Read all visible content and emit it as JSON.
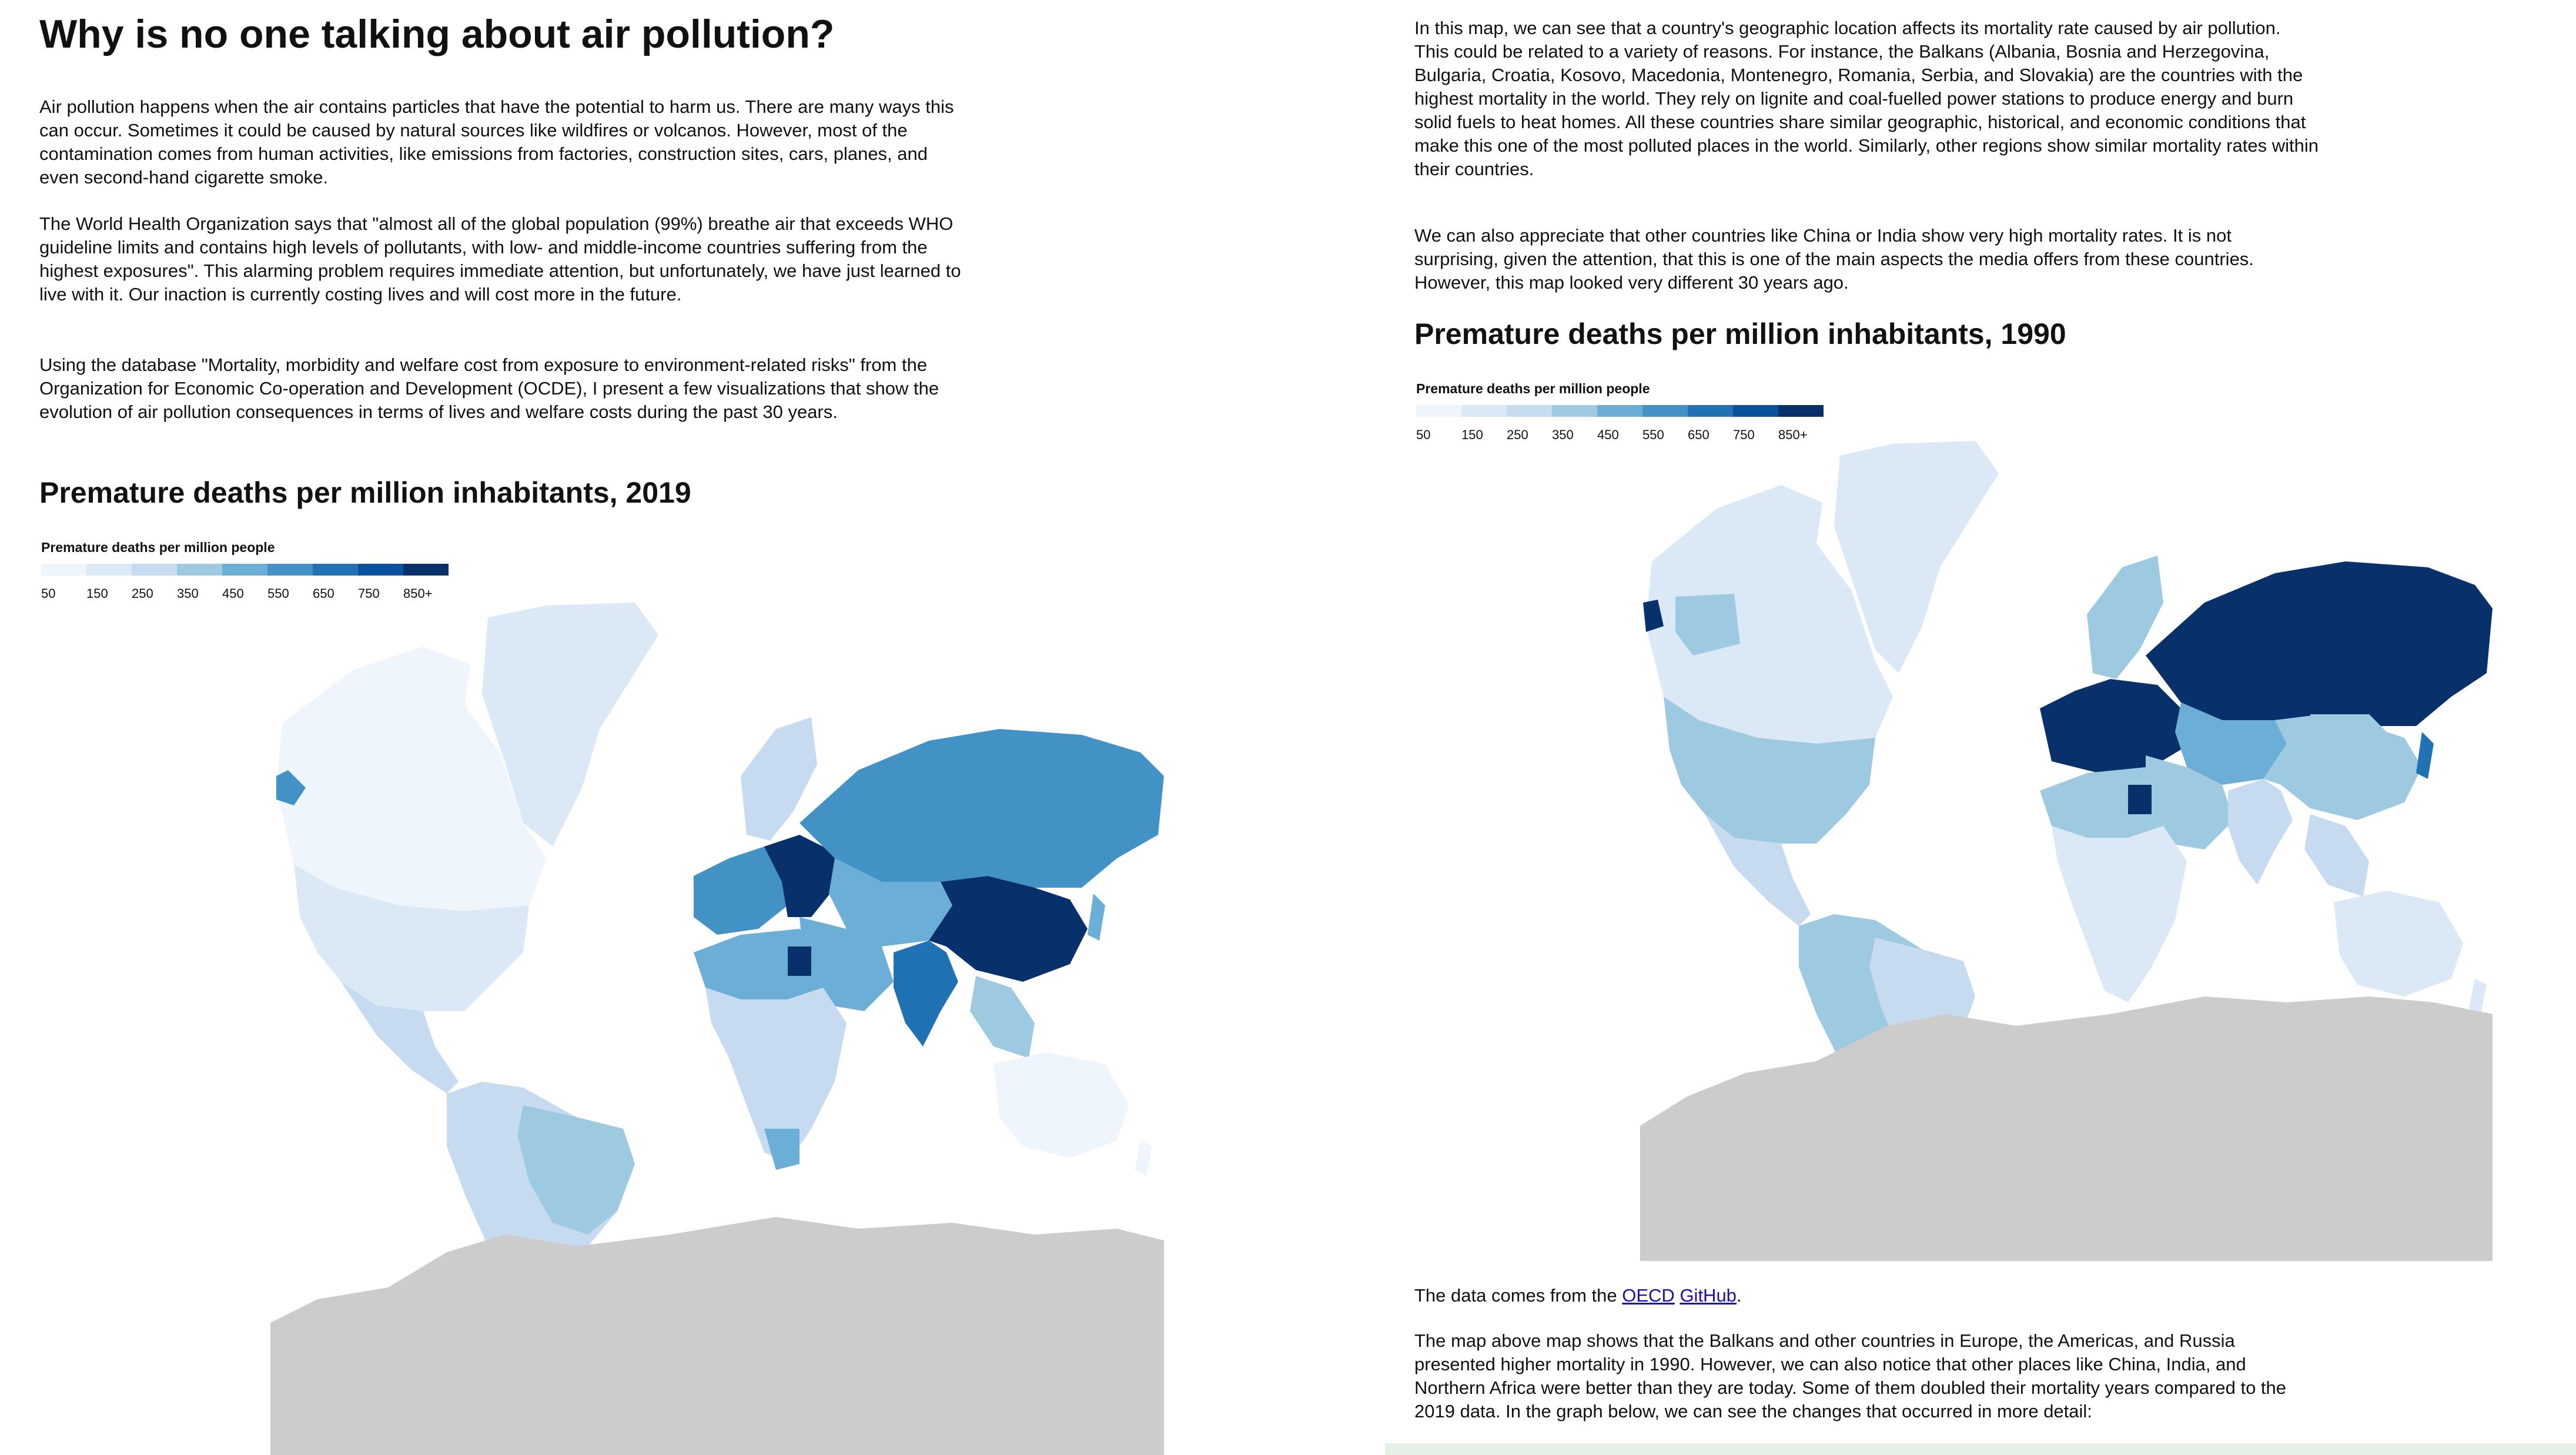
{
  "left": {
    "title": "Why is no one talking about air pollution?",
    "paragraphs": [
      "Air pollution happens when the air contains particles that have the potential to harm us. There are many ways this can occur. Sometimes it could be caused by natural sources like wildfires or volcanos. However, most of the contamination comes from human activities, like emissions from factories, construction sites, cars, planes, and even second-hand cigarette smoke.",
      "The World Health Organization says that \"almost all of the global population (99%) breathe air that exceeds WHO guideline limits and contains high levels of pollutants, with low- and middle-income countries suffering from the highest exposures\". This alarming problem requires immediate attention, but unfortunately, we have just learned to live with it. Our inaction is currently costing lives and will cost more in the future.",
      "Using the database \"Mortality, morbidity and welfare cost from exposure to environment-related risks\" from the Organization for Economic Co-operation and Development (OCDE), I present a few visualizations that show the evolution of air pollution consequences in terms of lives and welfare costs during the past 30 years."
    ],
    "map_heading": "Premature deaths per million inhabitants, 2019"
  },
  "right": {
    "paragraphs": [
      "In this map, we can see that a country's geographic location affects its mortality rate caused by air pollution. This could be related to a variety of reasons. For instance, the Balkans (Albania, Bosnia and Herzegovina, Bulgaria, Croatia, Kosovo, Macedonia, Montenegro, Romania, Serbia, and Slovakia) are the countries with the highest mortality in the world. They rely on lignite and coal-fuelled power stations to produce energy and burn solid fuels to heat homes. All these countries share similar geographic, historical, and economic conditions that make this one of the most polluted places in the world. Similarly, other regions show similar mortality rates within their countries.",
      "We can also appreciate that other countries like China or India show very high mortality rates. It is not surprising, given the attention, that this is one of the main aspects the media offers from these countries. However, this map looked very different 30 years ago."
    ],
    "map_heading": "Premature deaths per million inhabitants, 1990",
    "source_prefix": "The data comes from the",
    "source_link_1": "OECD",
    "source_link_2": "GitHub",
    "source_suffix": ".",
    "after_paragraph": "The map above map shows that the Balkans and other countries in Europe, the Americas, and Russia presented higher mortality in 1990. However, we can also notice that other places like China, India, and Northern Africa were better than they are today. Some of them doubled their mortality years compared to the 2019 data. In the graph below, we can see the changes that occurred in more detail:"
  },
  "legend": {
    "title": "Premature deaths per million people",
    "ticks": [
      "50",
      "150",
      "250",
      "350",
      "450",
      "550",
      "650",
      "750",
      "850+"
    ],
    "colors": [
      "#eff5fc",
      "#dbe9f6",
      "#c6dbef",
      "#9ecae1",
      "#6baed6",
      "#4292c6",
      "#2171b5",
      "#08519c",
      "#08306b"
    ]
  },
  "colors": {
    "no_data": "#cccccc",
    "link": "#1a0dab"
  }
}
